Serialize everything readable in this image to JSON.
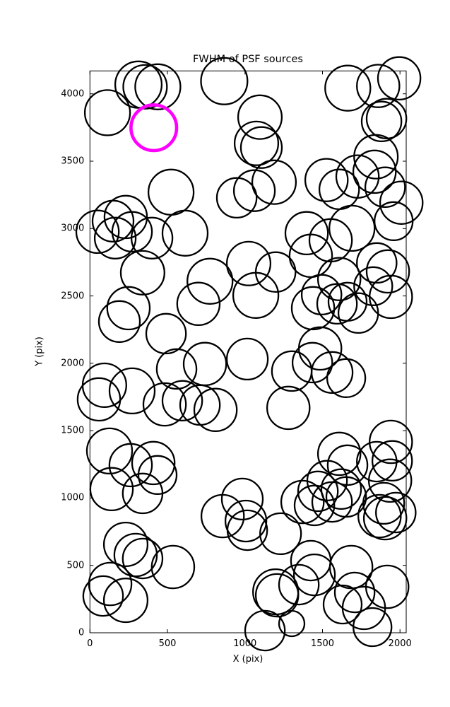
{
  "chart_data": {
    "type": "scatter",
    "title": "FWHM of PSF sources",
    "xlabel": "X (pix)",
    "ylabel": "Y (pix)",
    "xlim": [
      0,
      2040
    ],
    "ylim": [
      0,
      4170
    ],
    "xticks": [
      0,
      500,
      1000,
      1500,
      2000
    ],
    "yticks": [
      0,
      500,
      1000,
      1500,
      2000,
      2500,
      3000,
      3500,
      4000
    ],
    "grid": false,
    "legend": "none",
    "marker": "open-circle",
    "colors": {
      "source": "#000000",
      "highlight": "#ff00ff",
      "axes": "#000000"
    },
    "sources": [
      [
        113,
        3860,
        146
      ],
      [
        313,
        4068,
        150
      ],
      [
        356,
        4052,
        141
      ],
      [
        438,
        4052,
        146
      ],
      [
        866,
        4094,
        150
      ],
      [
        1663,
        4042,
        146
      ],
      [
        1859,
        4058,
        137
      ],
      [
        1995,
        4115,
        137
      ],
      [
        1881,
        3795,
        128
      ],
      [
        1913,
        3816,
        128
      ],
      [
        1097,
        3827,
        141
      ],
      [
        1074,
        3632,
        141
      ],
      [
        1106,
        3601,
        132
      ],
      [
        1845,
        3533,
        141
      ],
      [
        1836,
        3422,
        137
      ],
      [
        1904,
        3307,
        128
      ],
      [
        2009,
        3192,
        137
      ],
      [
        1526,
        3360,
        137
      ],
      [
        1608,
        3291,
        128
      ],
      [
        1726,
        3386,
        137
      ],
      [
        1188,
        3344,
        141
      ],
      [
        1061,
        3281,
        132
      ],
      [
        947,
        3228,
        128
      ],
      [
        523,
        3270,
        146
      ],
      [
        49,
        2976,
        137
      ],
      [
        149,
        3055,
        132
      ],
      [
        231,
        3086,
        137
      ],
      [
        272,
        2976,
        128
      ],
      [
        163,
        2929,
        132
      ],
      [
        400,
        2929,
        132
      ],
      [
        614,
        2966,
        146
      ],
      [
        1398,
        2966,
        137
      ],
      [
        1425,
        2798,
        137
      ],
      [
        1690,
        3002,
        146
      ],
      [
        1553,
        2913,
        137
      ],
      [
        1959,
        3055,
        123
      ],
      [
        1850,
        2745,
        128
      ],
      [
        1922,
        2682,
        137
      ],
      [
        1827,
        2572,
        123
      ],
      [
        1941,
        2493,
        137
      ],
      [
        1608,
        2625,
        137
      ],
      [
        1494,
        2509,
        128
      ],
      [
        1594,
        2441,
        128
      ],
      [
        1662,
        2457,
        123
      ],
      [
        1731,
        2373,
        128
      ],
      [
        1439,
        2409,
        137
      ],
      [
        1485,
        2110,
        137
      ],
      [
        1024,
        2740,
        141
      ],
      [
        1198,
        2677,
        128
      ],
      [
        1070,
        2504,
        146
      ],
      [
        774,
        2609,
        146
      ],
      [
        700,
        2441,
        137
      ],
      [
        340,
        2672,
        141
      ],
      [
        249,
        2409,
        137
      ],
      [
        190,
        2310,
        132
      ],
      [
        491,
        2220,
        128
      ],
      [
        1015,
        2031,
        132
      ],
      [
        94,
        1837,
        141
      ],
      [
        58,
        1732,
        137
      ],
      [
        272,
        1795,
        146
      ],
      [
        559,
        1958,
        128
      ],
      [
        742,
        1995,
        137
      ],
      [
        482,
        1695,
        137
      ],
      [
        596,
        1722,
        128
      ],
      [
        710,
        1690,
        128
      ],
      [
        810,
        1654,
        137
      ],
      [
        1302,
        1942,
        128
      ],
      [
        1435,
        2005,
        128
      ],
      [
        1280,
        1669,
        137
      ],
      [
        1562,
        1932,
        132
      ],
      [
        1653,
        1890,
        123
      ],
      [
        126,
        1349,
        146
      ],
      [
        263,
        1244,
        137
      ],
      [
        409,
        1260,
        137
      ],
      [
        140,
        1066,
        137
      ],
      [
        340,
        1034,
        128
      ],
      [
        436,
        1171,
        123
      ],
      [
        1941,
        1417,
        137
      ],
      [
        1850,
        1270,
        128
      ],
      [
        1950,
        1276,
        128
      ],
      [
        1936,
        1129,
        137
      ],
      [
        1608,
        1328,
        137
      ],
      [
        1662,
        1244,
        128
      ],
      [
        1530,
        1129,
        128
      ],
      [
        1621,
        1066,
        128
      ],
      [
        1471,
        1050,
        128
      ],
      [
        856,
        866,
        137
      ],
      [
        1006,
        829,
        132
      ],
      [
        1015,
        761,
        128
      ],
      [
        983,
        992,
        132
      ],
      [
        1230,
        735,
        132
      ],
      [
        1371,
        971,
        137
      ],
      [
        1448,
        945,
        128
      ],
      [
        1562,
        971,
        128
      ],
      [
        1653,
        1008,
        128
      ],
      [
        1868,
        866,
        137
      ],
      [
        1904,
        850,
        137
      ],
      [
        1895,
        961,
        132
      ],
      [
        1973,
        892,
        128
      ],
      [
        231,
        656,
        141
      ],
      [
        295,
        577,
        137
      ],
      [
        340,
        551,
        128
      ],
      [
        536,
        488,
        137
      ],
      [
        131,
        362,
        137
      ],
      [
        85,
        273,
        128
      ],
      [
        231,
        241,
        141
      ],
      [
        1198,
        304,
        146
      ],
      [
        1207,
        278,
        137
      ],
      [
        1348,
        357,
        128
      ],
      [
        1425,
        535,
        128
      ],
      [
        1448,
        430,
        132
      ],
      [
        1129,
        16,
        128
      ],
      [
        1302,
        68,
        82
      ],
      [
        1685,
        488,
        137
      ],
      [
        1708,
        299,
        128
      ],
      [
        1767,
        184,
        137
      ],
      [
        1630,
        210,
        123
      ],
      [
        1918,
        341,
        137
      ],
      [
        1822,
        42,
        123
      ]
    ],
    "highlighted_source": {
      "x": 412,
      "y": 3748,
      "r": 147,
      "color": "#ff00ff"
    }
  }
}
